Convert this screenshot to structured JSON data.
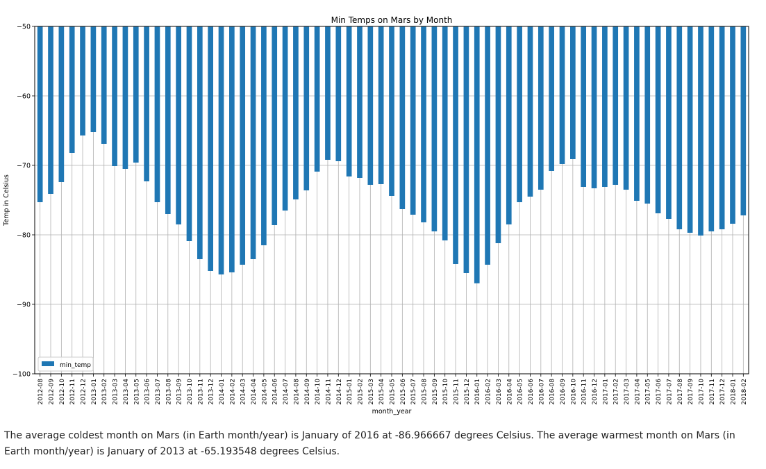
{
  "chart_data": {
    "type": "bar",
    "title": "Min Temps on Mars by Month",
    "xlabel": "month_year",
    "ylabel": "Temp in Celsius",
    "ylim": [
      -100,
      -50
    ],
    "yticks": [
      -50,
      -60,
      -70,
      -80,
      -90,
      -100
    ],
    "ytick_labels": [
      "−50",
      "−60",
      "−70",
      "−80",
      "−90",
      "−100"
    ],
    "grid": true,
    "legend": "lower-left",
    "bar_color": "#1f77b4",
    "categories": [
      "2012-08",
      "2012-09",
      "2012-10",
      "2012-11",
      "2012-12",
      "2013-01",
      "2013-02",
      "2013-03",
      "2013-04",
      "2013-05",
      "2013-06",
      "2013-07",
      "2013-08",
      "2013-09",
      "2013-10",
      "2013-11",
      "2013-12",
      "2014-01",
      "2014-02",
      "2014-03",
      "2014-04",
      "2014-05",
      "2014-06",
      "2014-07",
      "2014-08",
      "2014-09",
      "2014-10",
      "2014-11",
      "2014-12",
      "2015-01",
      "2015-02",
      "2015-03",
      "2015-04",
      "2015-05",
      "2015-06",
      "2015-07",
      "2015-08",
      "2015-09",
      "2015-10",
      "2015-11",
      "2015-12",
      "2016-01",
      "2016-02",
      "2016-03",
      "2016-04",
      "2016-05",
      "2016-06",
      "2016-07",
      "2016-08",
      "2016-09",
      "2016-10",
      "2016-11",
      "2016-12",
      "2017-01",
      "2017-02",
      "2017-03",
      "2017-04",
      "2017-05",
      "2017-06",
      "2017-07",
      "2017-08",
      "2017-09",
      "2017-10",
      "2017-11",
      "2017-12",
      "2018-01",
      "2018-02"
    ],
    "series": [
      {
        "name": "min_temp",
        "values": [
          -75.3,
          -74.1,
          -72.4,
          -68.2,
          -65.7,
          -65.2,
          -66.9,
          -70.1,
          -70.5,
          -69.6,
          -72.3,
          -75.3,
          -77.0,
          -78.5,
          -80.9,
          -83.5,
          -85.2,
          -85.7,
          -85.4,
          -84.3,
          -83.5,
          -81.5,
          -78.6,
          -76.5,
          -74.9,
          -73.6,
          -70.9,
          -69.2,
          -69.4,
          -71.6,
          -71.8,
          -72.8,
          -72.7,
          -74.4,
          -76.3,
          -77.1,
          -78.2,
          -79.5,
          -80.8,
          -84.2,
          -85.5,
          -86.9667,
          -84.3,
          -81.2,
          -78.5,
          -75.3,
          -74.5,
          -73.5,
          -70.8,
          -69.8,
          -69.1,
          -73.1,
          -73.3,
          -73.1,
          -72.8,
          -73.5,
          -75.1,
          -75.5,
          -76.9,
          -77.7,
          -79.2,
          -79.7,
          -80.1,
          -79.5,
          -79.2,
          -78.4,
          -77.2
        ]
      }
    ]
  },
  "summary_text": "The average coldest month on Mars (in Earth month/year) is January of 2016 at -86.966667 degrees Celsius. The average warmest month on Mars (in Earth month/year) is January of 2013 at -65.193548 degrees Celsius."
}
